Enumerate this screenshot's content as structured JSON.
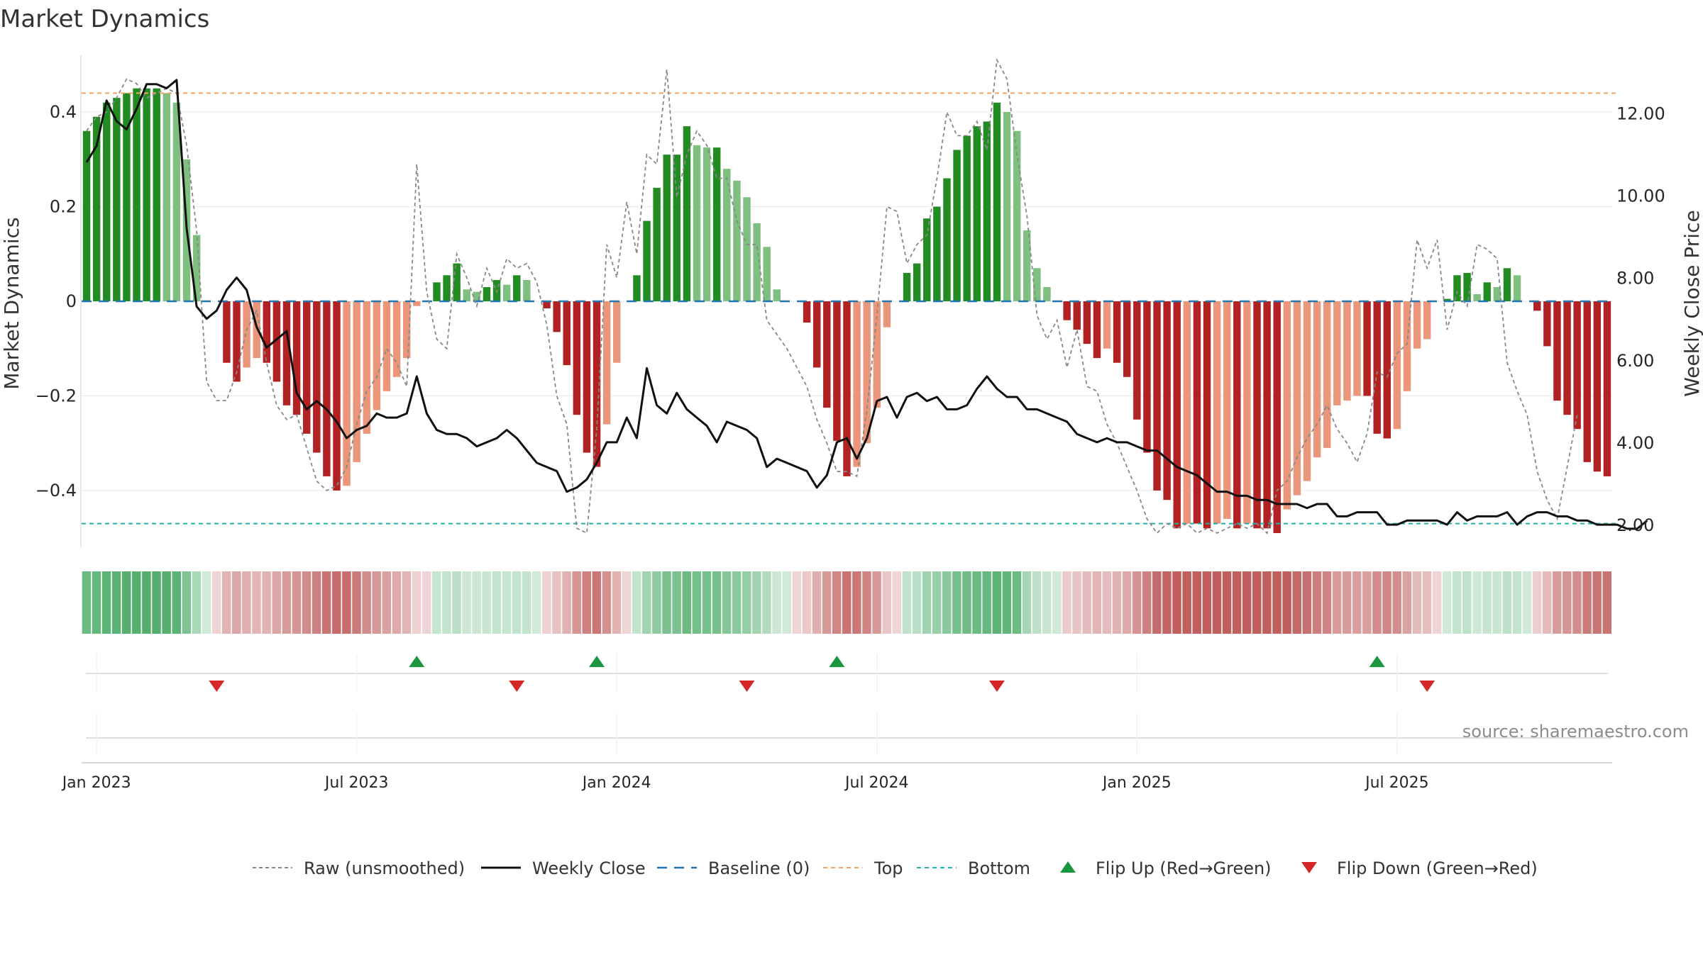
{
  "chart_data": {
    "type": "bar",
    "title": "Market Dynamics",
    "ylabel_left": "Market Dynamics",
    "ylabel_right": "Weekly Close Price",
    "source": "source: sharemaestro.com",
    "left_ylim": [
      -0.52,
      0.52
    ],
    "right_ylim": [
      1.45,
      13.4
    ],
    "left_ticks": [
      {
        "v": 0.4,
        "label": "0.4"
      },
      {
        "v": 0.2,
        "label": "0.2"
      },
      {
        "v": 0,
        "label": "0"
      },
      {
        "v": -0.2,
        "label": "−0.2"
      },
      {
        "v": -0.4,
        "label": "−0.4"
      }
    ],
    "right_ticks": [
      {
        "v": 12,
        "label": "12.00"
      },
      {
        "v": 10,
        "label": "10.00"
      },
      {
        "v": 8,
        "label": "8.00"
      },
      {
        "v": 6,
        "label": "6.00"
      },
      {
        "v": 4,
        "label": "4.00"
      },
      {
        "v": 2,
        "label": "2.00"
      }
    ],
    "x_ticks": [
      {
        "i": 1.5,
        "label": "Jan 2023"
      },
      {
        "i": 27.5,
        "label": "Jul 2023"
      },
      {
        "i": 53.5,
        "label": "Jan 2024"
      },
      {
        "i": 79.5,
        "label": "Jul 2024"
      },
      {
        "i": 105.5,
        "label": "Jan 2025"
      },
      {
        "i": 131.5,
        "label": "Jul 2025"
      }
    ],
    "top_level": 0.44,
    "bottom_level": -0.47,
    "baseline": 0,
    "bar_values": [
      0.36,
      0.39,
      0.42,
      0.43,
      0.44,
      0.45,
      0.45,
      0.45,
      0.44,
      0.42,
      0.3,
      0.14,
      0,
      0,
      -0.13,
      -0.17,
      -0.14,
      -0.12,
      -0.13,
      -0.17,
      -0.22,
      -0.24,
      -0.28,
      -0.32,
      -0.37,
      -0.4,
      -0.39,
      -0.34,
      -0.28,
      -0.23,
      -0.19,
      -0.16,
      -0.12,
      -0.01,
      0,
      0.04,
      0.055,
      0.08,
      0.025,
      0.02,
      0.03,
      0.045,
      0.035,
      0.055,
      0.045,
      0,
      -0.015,
      -0.065,
      -0.135,
      -0.24,
      -0.32,
      -0.35,
      -0.26,
      -0.13,
      0,
      0.055,
      0.17,
      0.24,
      0.31,
      0.31,
      0.37,
      0.33,
      0.325,
      0.325,
      0.28,
      0.255,
      0.22,
      0.165,
      0.115,
      0.025,
      0,
      0,
      -0.045,
      -0.14,
      -0.225,
      -0.295,
      -0.37,
      -0.35,
      -0.3,
      -0.225,
      -0.055,
      0,
      0.06,
      0.08,
      0.175,
      0.2,
      0.26,
      0.32,
      0.35,
      0.37,
      0.38,
      0.42,
      0.4,
      0.36,
      0.15,
      0.07,
      0.03,
      0,
      -0.04,
      -0.06,
      -0.09,
      -0.12,
      -0.1,
      -0.13,
      -0.16,
      -0.25,
      -0.32,
      -0.4,
      -0.42,
      -0.48,
      -0.47,
      -0.47,
      -0.48,
      -0.47,
      -0.46,
      -0.48,
      -0.47,
      -0.48,
      -0.48,
      -0.49,
      -0.44,
      -0.41,
      -0.38,
      -0.33,
      -0.31,
      -0.22,
      -0.21,
      -0.2,
      -0.2,
      -0.28,
      -0.29,
      -0.27,
      -0.19,
      -0.1,
      -0.08,
      0,
      0.005,
      0.055,
      0.06,
      0.015,
      0.04,
      0.03,
      0.07,
      0.055,
      0,
      -0.02,
      -0.095,
      -0.21,
      -0.24,
      -0.27,
      -0.34,
      -0.36,
      -0.37
    ],
    "raw_values": [
      0.36,
      0.39,
      0.4,
      0.43,
      0.47,
      0.46,
      0.43,
      0.44,
      0.45,
      0.44,
      0.33,
      0.15,
      -0.17,
      -0.21,
      -0.21,
      -0.15,
      -0.06,
      -0.02,
      -0.13,
      -0.22,
      -0.25,
      -0.24,
      -0.31,
      -0.38,
      -0.4,
      -0.39,
      -0.35,
      -0.26,
      -0.19,
      -0.16,
      -0.1,
      -0.13,
      -0.18,
      0.29,
      0.02,
      -0.08,
      -0.1,
      0.1,
      0.05,
      -0.01,
      0.07,
      0.02,
      0.09,
      0.07,
      0.08,
      0.04,
      -0.05,
      -0.2,
      -0.26,
      -0.48,
      -0.49,
      -0.27,
      0.12,
      0.05,
      0.21,
      0.1,
      0.31,
      0.29,
      0.49,
      0.22,
      0.31,
      0.36,
      0.33,
      0.26,
      0.26,
      0.17,
      0.12,
      0.12,
      -0.04,
      -0.07,
      -0.1,
      -0.14,
      -0.18,
      -0.25,
      -0.3,
      -0.36,
      -0.36,
      -0.37,
      -0.23,
      -0.03,
      0.2,
      0.19,
      0.08,
      0.12,
      0.14,
      0.26,
      0.4,
      0.35,
      0.35,
      0.38,
      0.32,
      0.51,
      0.47,
      0.31,
      0.18,
      -0.03,
      -0.08,
      -0.04,
      -0.14,
      -0.06,
      -0.18,
      -0.19,
      -0.26,
      -0.3,
      -0.35,
      -0.4,
      -0.46,
      -0.49,
      -0.47,
      -0.48,
      -0.47,
      -0.49,
      -0.48,
      -0.49,
      -0.48,
      -0.47,
      -0.48,
      -0.47,
      -0.49,
      -0.4,
      -0.38,
      -0.33,
      -0.29,
      -0.26,
      -0.22,
      -0.27,
      -0.3,
      -0.34,
      -0.28,
      -0.15,
      -0.16,
      -0.11,
      -0.09,
      0.13,
      0.07,
      0.13,
      -0.06,
      0.02,
      -0.01,
      0.12,
      0.11,
      0.09,
      -0.13,
      -0.19,
      -0.24,
      -0.36,
      -0.42,
      -0.46,
      -0.35,
      -0.24
    ],
    "close_values": [
      10.8,
      11.2,
      12.3,
      11.8,
      11.6,
      12.1,
      12.7,
      12.7,
      12.6,
      12.8,
      9.2,
      7.3,
      7.0,
      7.2,
      7.7,
      8.0,
      7.7,
      6.8,
      6.3,
      6.5,
      6.7,
      5.2,
      4.8,
      5.0,
      4.8,
      4.5,
      4.1,
      4.3,
      4.4,
      4.7,
      4.6,
      4.6,
      4.7,
      5.6,
      4.7,
      4.3,
      4.2,
      4.2,
      4.1,
      3.9,
      4.0,
      4.1,
      4.3,
      4.1,
      3.8,
      3.5,
      3.4,
      3.3,
      2.8,
      2.9,
      3.1,
      3.5,
      4.0,
      4.0,
      4.6,
      4.1,
      5.8,
      4.9,
      4.7,
      5.2,
      4.8,
      4.6,
      4.4,
      4.0,
      4.5,
      4.4,
      4.3,
      4.1,
      3.4,
      3.6,
      3.5,
      3.4,
      3.3,
      2.9,
      3.2,
      4.0,
      4.1,
      3.6,
      4.1,
      5.0,
      5.1,
      4.6,
      5.1,
      5.2,
      5.0,
      5.1,
      4.8,
      4.8,
      4.9,
      5.3,
      5.6,
      5.3,
      5.1,
      5.1,
      4.8,
      4.8,
      4.7,
      4.6,
      4.5,
      4.2,
      4.1,
      4.0,
      4.1,
      4.0,
      4.0,
      3.9,
      3.8,
      3.8,
      3.6,
      3.4,
      3.3,
      3.2,
      3.0,
      2.8,
      2.8,
      2.7,
      2.7,
      2.6,
      2.6,
      2.5,
      2.5,
      2.5,
      2.4,
      2.5,
      2.5,
      2.2,
      2.2,
      2.3,
      2.3,
      2.3,
      2.0,
      2.0,
      2.1,
      2.1,
      2.1,
      2.1,
      2.0,
      2.3,
      2.1,
      2.2,
      2.2,
      2.2,
      2.3,
      2.0,
      2.2,
      2.3,
      2.3,
      2.2,
      2.2,
      2.1,
      2.1,
      2.0,
      2.0,
      2.0,
      1.9,
      1.9,
      2.1
    ],
    "flips_up": [
      33.5,
      51.5,
      75.5,
      129.5
    ],
    "flips_down": [
      13.5,
      43.5,
      66.5,
      91.5,
      134.5
    ],
    "legend": [
      {
        "key": "raw",
        "label": "Raw (unsmoothed)"
      },
      {
        "key": "close",
        "label": "Weekly Close"
      },
      {
        "key": "baseline",
        "label": "Baseline (0)"
      },
      {
        "key": "top",
        "label": "Top"
      },
      {
        "key": "bottom",
        "label": "Bottom"
      },
      {
        "key": "up",
        "label": "Flip Up (Red→Green)"
      },
      {
        "key": "down",
        "label": "Flip Down (Green→Red)"
      }
    ],
    "colors": {
      "pos_strong": "#228b22",
      "pos_weak": "#7fbf7f",
      "neg_strong": "#b22222",
      "neg_weak": "#e9967a",
      "close_line": "#111111",
      "raw_line": "#888888",
      "baseline": "#1f77b4",
      "top": "#f4a460",
      "bottom": "#20b2aa",
      "flip_up": "#1a9641",
      "flip_down": "#d62728"
    }
  }
}
